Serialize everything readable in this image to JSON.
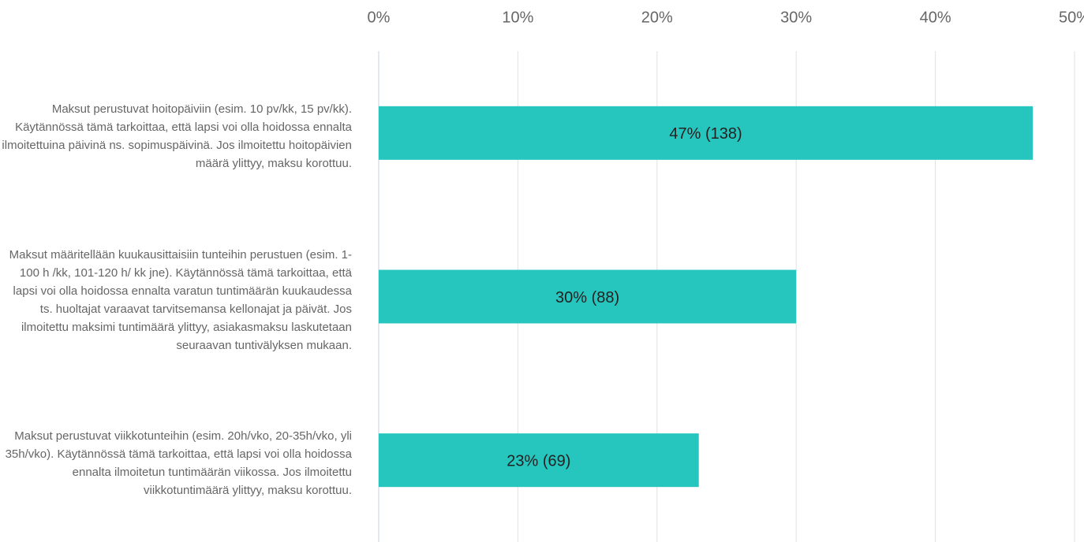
{
  "chart_data": {
    "type": "bar",
    "orientation": "horizontal",
    "categories": [
      "Maksut perustuvat hoitopäiviin (esim. 10 pv/kk, 15 pv/kk). Käytännössä tämä tarkoittaa, että lapsi voi olla hoidossa ennalta ilmoitettuina päivinä ns. sopimuspäivinä. Jos ilmoitettu hoitopäivien määrä ylittyy, maksu korottuu.",
      "Maksut määritellään kuukausittaisiin tunteihin perustuen (esim. 1-100 h /kk, 101-120 h/ kk jne). Käytännössä tämä tarkoittaa, että lapsi voi olla hoidossa ennalta varatun tuntimäärän kuukaudessa ts. huoltajat varaavat tarvitsemansa kellonajat ja päivät. Jos ilmoitettu maksimi tuntimäärä ylittyy, asiakasmaksu laskutetaan seuraavan tuntivälyksen mukaan.",
      "Maksut perustuvat viikkotunteihin (esim. 20h/vko, 20-35h/vko, yli 35h/vko). Käytännössä tämä tarkoittaa, että lapsi voi olla hoidossa ennalta ilmoitetun tuntimäärän viikossa. Jos ilmoitettu viikkotuntimäärä ylittyy, maksu korottuu."
    ],
    "values": [
      47,
      30,
      23
    ],
    "value_labels": [
      "47% (138)",
      "30% (88)",
      "23% (69)"
    ],
    "color": "#26c6bf",
    "xlim": [
      0,
      50
    ],
    "xticks": [
      {
        "value": 0,
        "label": "0%"
      },
      {
        "value": 10,
        "label": "10%"
      },
      {
        "value": 20,
        "label": "20%"
      },
      {
        "value": 30,
        "label": "30%"
      },
      {
        "value": 40,
        "label": "40%"
      },
      {
        "value": 50,
        "label": "50%"
      }
    ],
    "grid": true
  }
}
